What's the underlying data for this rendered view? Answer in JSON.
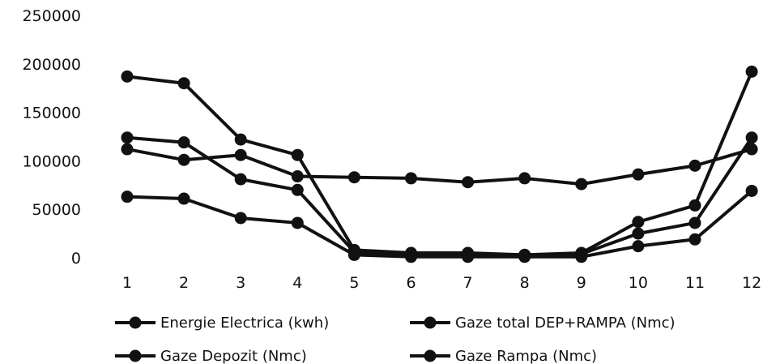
{
  "chart_data": {
    "type": "line",
    "title": "",
    "xlabel": "",
    "ylabel": "",
    "categories": [
      "1",
      "2",
      "3",
      "4",
      "5",
      "6",
      "7",
      "8",
      "9",
      "10",
      "11",
      "12"
    ],
    "ylim": [
      0,
      250000
    ],
    "yticks": [
      "0",
      "50000",
      "100000",
      "150000",
      "200000",
      "250000"
    ],
    "grid": false,
    "legend_position": "bottom",
    "series": [
      {
        "name": "Energie Electrica (kwh)",
        "values": [
          112000,
          101000,
          106000,
          84000,
          83000,
          82000,
          78000,
          82000,
          76000,
          86000,
          95000,
          112000
        ]
      },
      {
        "name": "Gaze total DEP+RAMPA (Nmc)",
        "values": [
          187000,
          180000,
          122000,
          106000,
          8000,
          5000,
          5000,
          3000,
          5000,
          37000,
          54000,
          192000
        ]
      },
      {
        "name": "Gaze Depozit (Nmc)",
        "values": [
          124000,
          119000,
          81000,
          70000,
          6000,
          4000,
          4000,
          3000,
          4000,
          25000,
          36000,
          124000
        ]
      },
      {
        "name": "Gaze Rampa (Nmc)",
        "values": [
          63000,
          61000,
          41000,
          36000,
          3000,
          1000,
          1000,
          1000,
          1000,
          12000,
          19000,
          69000
        ]
      }
    ],
    "colors": {
      "line": "#111111",
      "marker": "#111111"
    }
  }
}
